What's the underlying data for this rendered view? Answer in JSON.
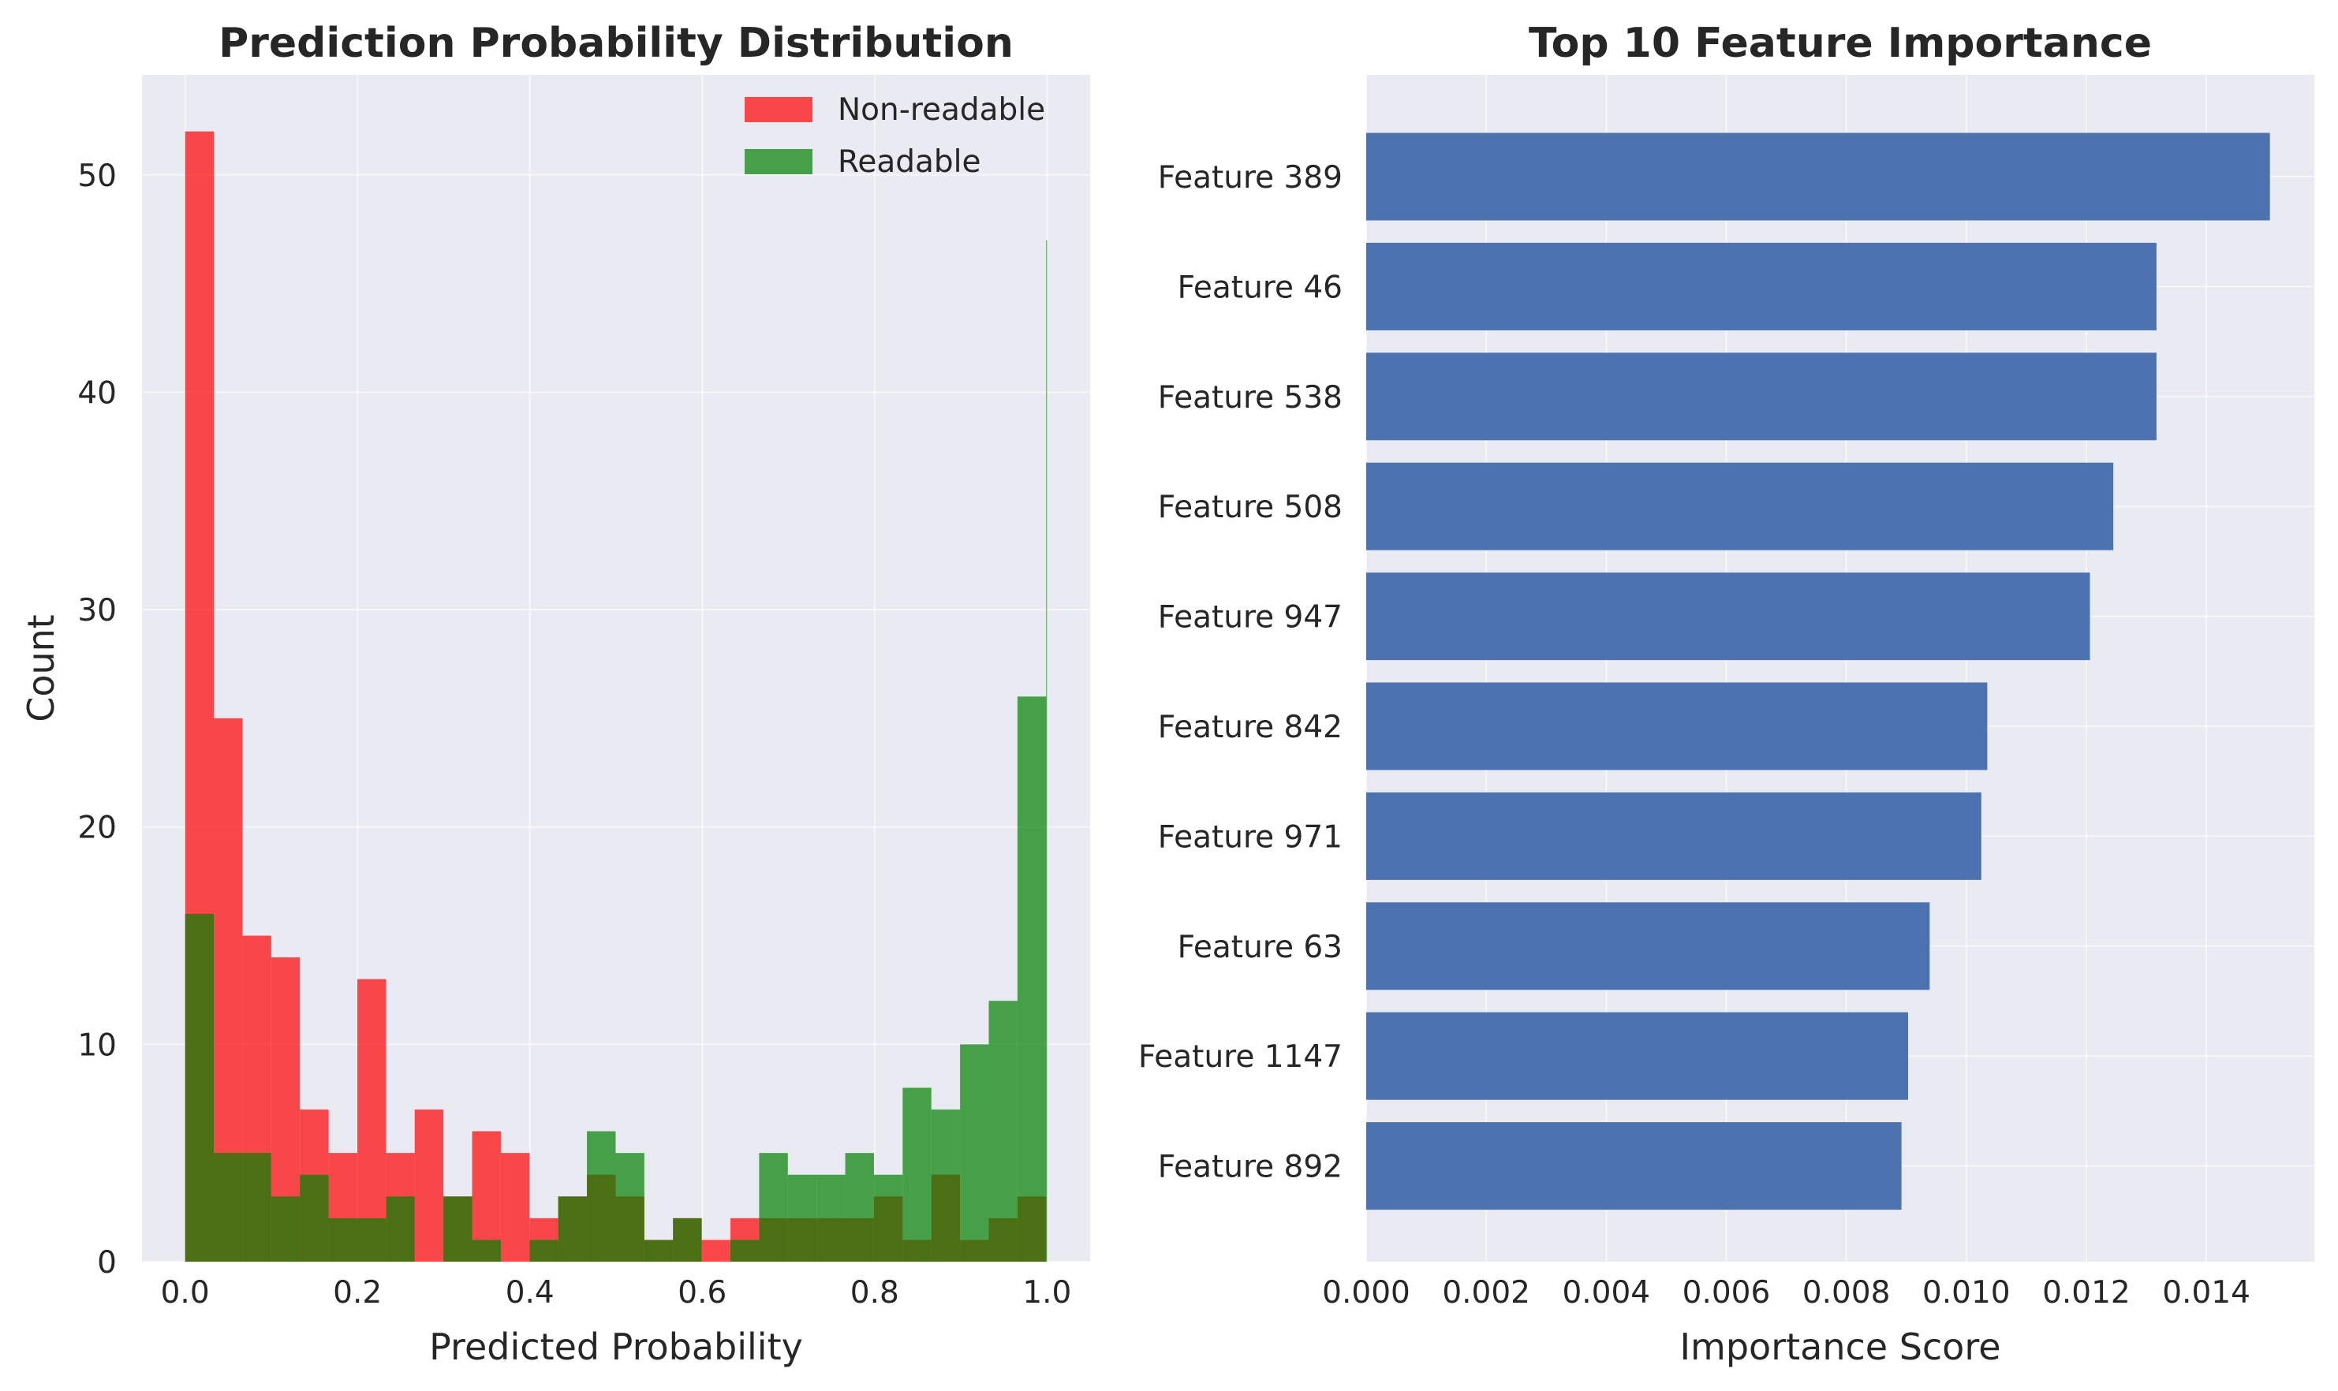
{
  "chart_data": [
    {
      "type": "histogram",
      "title": "Prediction Probability Distribution",
      "xlabel": "Predicted Probability",
      "ylabel": "Count",
      "xlim": [
        -0.05,
        1.05
      ],
      "ylim": [
        0,
        54.6
      ],
      "xticks": [
        0.0,
        0.2,
        0.4,
        0.6,
        0.8,
        1.0
      ],
      "xtick_labels": [
        "0.0",
        "0.2",
        "0.4",
        "0.6",
        "0.8",
        "1.0"
      ],
      "yticks": [
        0,
        10,
        20,
        30,
        40,
        50
      ],
      "ytick_labels": [
        "0",
        "10",
        "20",
        "30",
        "40",
        "50"
      ],
      "grid": true,
      "legend": "top-right",
      "bin_start": 0.0,
      "bin_width": 0.0333,
      "series": [
        {
          "name": "Non-readable",
          "color": "#ff0000",
          "alpha": 0.7,
          "values": [
            52,
            25,
            15,
            14,
            7,
            5,
            13,
            5,
            7,
            3,
            6,
            5,
            2,
            3,
            4,
            3,
            1,
            2,
            1,
            2,
            2,
            2,
            2,
            2,
            3,
            1,
            4,
            1,
            2,
            3
          ]
        },
        {
          "name": "Readable",
          "color": "#008000",
          "alpha": 0.7,
          "values": [
            16,
            5,
            5,
            3,
            4,
            2,
            2,
            3,
            0,
            3,
            1,
            0,
            1,
            3,
            6,
            5,
            1,
            2,
            0,
            1,
            5,
            4,
            4,
            5,
            4,
            8,
            7,
            10,
            12,
            26,
            47
          ]
        }
      ]
    },
    {
      "type": "bar",
      "orientation": "horizontal",
      "title": "Top 10 Feature Importance",
      "xlabel": "Importance Score",
      "ylabel": "",
      "xlim": [
        0,
        0.0158
      ],
      "xticks": [
        0,
        0.002,
        0.004,
        0.006,
        0.008,
        0.01,
        0.012,
        0.014
      ],
      "xtick_labels": [
        "0.000",
        "0.002",
        "0.004",
        "0.006",
        "0.008",
        "0.010",
        "0.012",
        "0.014"
      ],
      "grid": true,
      "color": "#4c72b0",
      "categories": [
        "Feature 389",
        "Feature 46",
        "Feature 538",
        "Feature 508",
        "Feature 947",
        "Feature 842",
        "Feature 971",
        "Feature 63",
        "Feature 1147",
        "Feature 892"
      ],
      "values": [
        0.01506,
        0.01317,
        0.01317,
        0.01245,
        0.01206,
        0.01035,
        0.01025,
        0.00939,
        0.00903,
        0.00892
      ]
    }
  ]
}
